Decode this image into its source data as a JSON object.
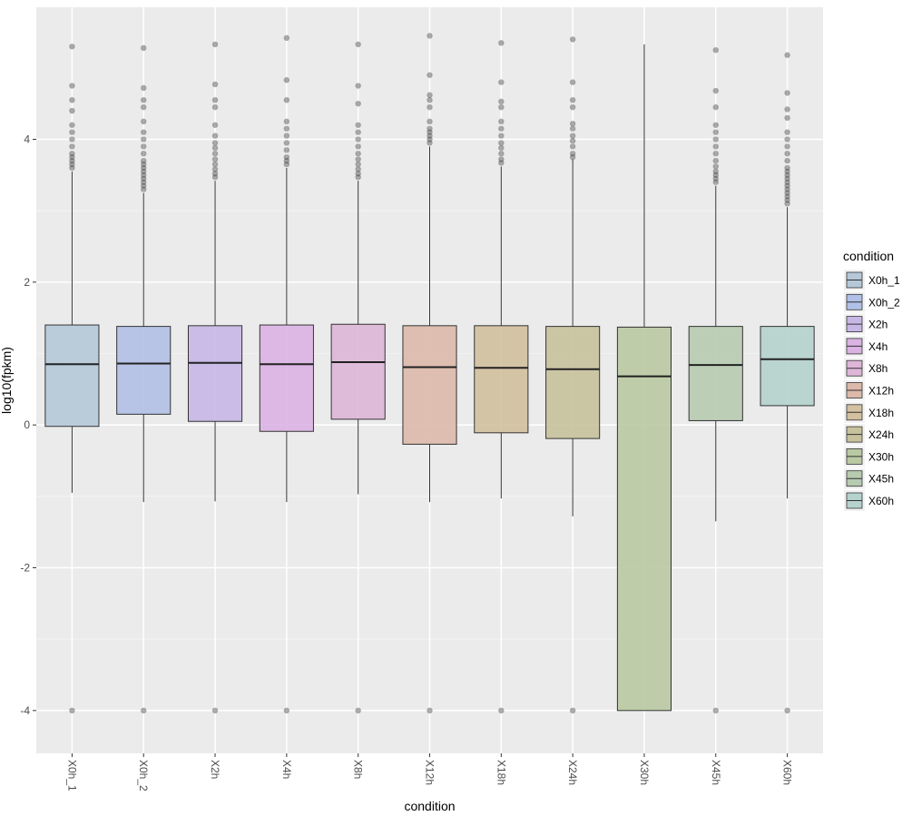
{
  "chart_data": {
    "type": "box",
    "xlabel": "condition",
    "ylabel": "log10(fpkm)",
    "ylim": [
      -4.6,
      5.85
    ],
    "y_ticks": [
      -4,
      -2,
      0,
      2,
      4
    ],
    "y_tick_labels": [
      "-4",
      "-2",
      "0",
      "2",
      "4"
    ],
    "grid": true,
    "legend": {
      "title": "condition",
      "position": "right"
    },
    "categories": [
      "X0h_1",
      "X0h_2",
      "X2h",
      "X4h",
      "X8h",
      "X12h",
      "X18h",
      "X24h",
      "X30h",
      "X45h",
      "X60h"
    ],
    "colors": [
      "#b5c8d8",
      "#b1c0e6",
      "#c7b7e5",
      "#dbb3e3",
      "#deb6d8",
      "#dcb9aa",
      "#d2c09f",
      "#c7c29c",
      "#b9c9a2",
      "#b7cbb0",
      "#b5d2cc"
    ],
    "boxes": [
      {
        "name": "X0h_1",
        "whisker_low": -0.95,
        "q1": -0.02,
        "median": 0.85,
        "q3": 1.4,
        "whisker_high": 3.55,
        "outliers": [
          3.6,
          3.65,
          3.7,
          3.75,
          3.8,
          3.9,
          4.0,
          4.1,
          4.2,
          4.4,
          4.55,
          4.75,
          5.3,
          -4.0
        ]
      },
      {
        "name": "X0h_2",
        "whisker_low": -1.08,
        "q1": 0.15,
        "median": 0.86,
        "q3": 1.38,
        "whisker_high": 3.25,
        "outliers": [
          3.3,
          3.35,
          3.4,
          3.45,
          3.5,
          3.55,
          3.6,
          3.65,
          3.7,
          3.8,
          3.9,
          4.0,
          4.1,
          4.25,
          4.45,
          4.55,
          4.72,
          5.28,
          -4.0
        ]
      },
      {
        "name": "X2h",
        "whisker_low": -1.07,
        "q1": 0.05,
        "median": 0.87,
        "q3": 1.39,
        "whisker_high": 3.42,
        "outliers": [
          3.47,
          3.52,
          3.58,
          3.65,
          3.72,
          3.8,
          3.88,
          3.95,
          4.05,
          4.2,
          4.45,
          4.55,
          4.77,
          5.33,
          -4.0
        ]
      },
      {
        "name": "X4h",
        "whisker_low": -1.08,
        "q1": -0.09,
        "median": 0.85,
        "q3": 1.4,
        "whisker_high": 3.6,
        "outliers": [
          3.65,
          3.7,
          3.75,
          3.85,
          3.95,
          4.05,
          4.15,
          4.25,
          4.55,
          4.83,
          5.42,
          -4.0
        ]
      },
      {
        "name": "X8h",
        "whisker_low": -0.97,
        "q1": 0.08,
        "median": 0.88,
        "q3": 1.41,
        "whisker_high": 3.42,
        "outliers": [
          3.47,
          3.52,
          3.58,
          3.65,
          3.72,
          3.8,
          3.9,
          4.0,
          4.1,
          4.2,
          4.5,
          4.75,
          5.33,
          -4.0
        ]
      },
      {
        "name": "X12h",
        "whisker_low": -1.08,
        "q1": -0.27,
        "median": 0.81,
        "q3": 1.39,
        "whisker_high": 3.9,
        "outliers": [
          3.95,
          4.0,
          4.05,
          4.1,
          4.15,
          4.25,
          4.45,
          4.55,
          4.62,
          4.9,
          5.45,
          -4.0
        ]
      },
      {
        "name": "X18h",
        "whisker_low": -1.03,
        "q1": -0.11,
        "median": 0.8,
        "q3": 1.39,
        "whisker_high": 3.62,
        "outliers": [
          3.67,
          3.72,
          3.8,
          3.88,
          3.95,
          4.05,
          4.15,
          4.25,
          4.45,
          4.53,
          4.8,
          5.35,
          -4.0
        ]
      },
      {
        "name": "X24h",
        "whisker_low": -1.28,
        "q1": -0.19,
        "median": 0.78,
        "q3": 1.38,
        "whisker_high": 3.72,
        "outliers": [
          3.75,
          3.8,
          3.9,
          3.98,
          4.05,
          4.15,
          4.22,
          4.45,
          4.55,
          4.8,
          5.4,
          -4.0
        ]
      },
      {
        "name": "X30h",
        "whisker_low": -4.0,
        "q1": -4.0,
        "median": 0.68,
        "q3": 1.37,
        "whisker_high": 5.33,
        "outliers": []
      },
      {
        "name": "X45h",
        "whisker_low": -1.35,
        "q1": 0.06,
        "median": 0.84,
        "q3": 1.38,
        "whisker_high": 3.35,
        "outliers": [
          3.4,
          3.45,
          3.5,
          3.55,
          3.62,
          3.7,
          3.8,
          3.9,
          4.0,
          4.1,
          4.2,
          4.45,
          4.68,
          5.25,
          -4.0
        ]
      },
      {
        "name": "X60h",
        "whisker_low": -1.03,
        "q1": 0.27,
        "median": 0.92,
        "q3": 1.38,
        "whisker_high": 3.05,
        "outliers": [
          3.1,
          3.15,
          3.2,
          3.25,
          3.3,
          3.35,
          3.4,
          3.45,
          3.5,
          3.55,
          3.6,
          3.7,
          3.8,
          3.9,
          4.0,
          4.1,
          4.3,
          4.42,
          4.65,
          5.18,
          -4.0
        ]
      }
    ]
  }
}
